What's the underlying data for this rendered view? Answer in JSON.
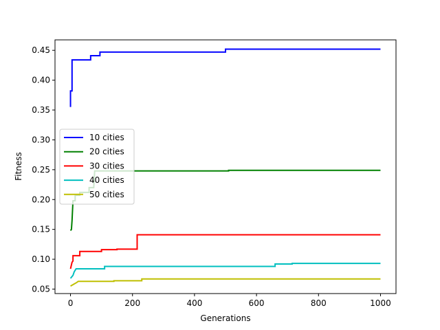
{
  "chart_data": {
    "type": "line",
    "title": "",
    "xlabel": "Generations",
    "ylabel": "Fitness",
    "xlim": [
      -50,
      1050
    ],
    "ylim": [
      0.0425,
      0.4675
    ],
    "xticks": [
      0,
      200,
      400,
      600,
      800,
      1000
    ],
    "xtick_labels": [
      "0",
      "200",
      "400",
      "600",
      "800",
      "1000"
    ],
    "yticks": [
      0.05,
      0.1,
      0.15,
      0.2,
      0.25,
      0.3,
      0.35,
      0.4,
      0.45
    ],
    "ytick_labels": [
      "0.05",
      "0.10",
      "0.15",
      "0.20",
      "0.25",
      "0.30",
      "0.35",
      "0.40",
      "0.45"
    ],
    "grid": false,
    "legend_position": "center-left",
    "series": [
      {
        "name": "10 cities",
        "color": "#0000ff",
        "points": [
          [
            0,
            0.355
          ],
          [
            0,
            0.382
          ],
          [
            5,
            0.382
          ],
          [
            5,
            0.434
          ],
          [
            65,
            0.434
          ],
          [
            65,
            0.441
          ],
          [
            95,
            0.441
          ],
          [
            95,
            0.447
          ],
          [
            500,
            0.447
          ],
          [
            500,
            0.452
          ],
          [
            1000,
            0.452
          ]
        ]
      },
      {
        "name": "20 cities",
        "color": "#008000",
        "points": [
          [
            0,
            0.148
          ],
          [
            3,
            0.15
          ],
          [
            5,
            0.165
          ],
          [
            8,
            0.198
          ],
          [
            15,
            0.198
          ],
          [
            15,
            0.207
          ],
          [
            30,
            0.207
          ],
          [
            30,
            0.212
          ],
          [
            60,
            0.212
          ],
          [
            60,
            0.22
          ],
          [
            75,
            0.22
          ],
          [
            78,
            0.248
          ],
          [
            510,
            0.248
          ],
          [
            510,
            0.249
          ],
          [
            1000,
            0.249
          ]
        ]
      },
      {
        "name": "30 cities",
        "color": "#ff0000",
        "points": [
          [
            0,
            0.084
          ],
          [
            5,
            0.095
          ],
          [
            8,
            0.097
          ],
          [
            8,
            0.106
          ],
          [
            30,
            0.106
          ],
          [
            30,
            0.113
          ],
          [
            100,
            0.113
          ],
          [
            100,
            0.116
          ],
          [
            150,
            0.116
          ],
          [
            150,
            0.117
          ],
          [
            215,
            0.117
          ],
          [
            215,
            0.141
          ],
          [
            1000,
            0.141
          ]
        ]
      },
      {
        "name": "40 cities",
        "color": "#00bfbf",
        "points": [
          [
            0,
            0.068
          ],
          [
            8,
            0.073
          ],
          [
            12,
            0.079
          ],
          [
            18,
            0.084
          ],
          [
            110,
            0.084
          ],
          [
            110,
            0.088
          ],
          [
            660,
            0.088
          ],
          [
            660,
            0.092
          ],
          [
            715,
            0.092
          ],
          [
            715,
            0.093
          ],
          [
            1000,
            0.093
          ]
        ]
      },
      {
        "name": "50 cities",
        "color": "#bfbf00",
        "points": [
          [
            0,
            0.055
          ],
          [
            10,
            0.058
          ],
          [
            20,
            0.061
          ],
          [
            25,
            0.063
          ],
          [
            140,
            0.063
          ],
          [
            140,
            0.064
          ],
          [
            230,
            0.064
          ],
          [
            230,
            0.067
          ],
          [
            1000,
            0.067
          ]
        ]
      }
    ]
  }
}
